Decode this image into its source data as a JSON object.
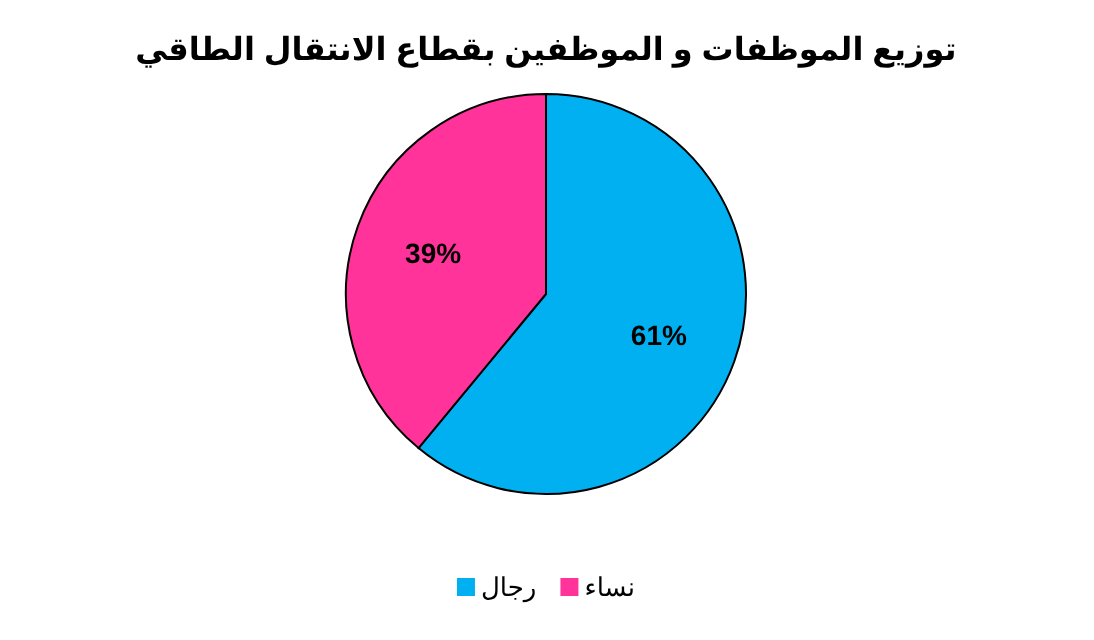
{
  "chart_data": {
    "type": "pie",
    "title": "توزيع الموظفات و الموظفين بقطاع الانتقال الطاقي",
    "categories": [
      "رجال",
      "نساء"
    ],
    "values": [
      61,
      39
    ],
    "colors": [
      "#00b0f0",
      "#ff3399"
    ],
    "value_labels": [
      "61%",
      "39%"
    ],
    "legend": "bottom"
  }
}
